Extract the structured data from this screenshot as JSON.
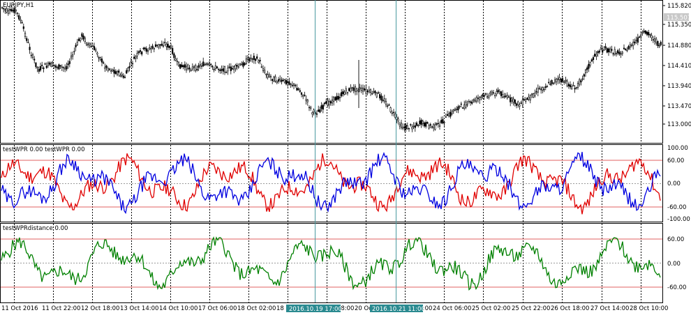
{
  "main": {
    "title": "EURJPY,H1",
    "price_labels": [
      "115.820",
      "115.350",
      "114.880",
      "114.410",
      "113.940",
      "113.470",
      "113.000"
    ],
    "current_price": "115.507",
    "y_range": [
      112.8,
      115.9
    ],
    "current_value": 115.507
  },
  "wpr": {
    "title": "testWPR 0.00 testWPR 0.00",
    "levels": [
      "100.00",
      "60.00",
      "0.00",
      "-60.00",
      "-100.00"
    ],
    "series": [
      {
        "name": "testWPR",
        "color": "#e00000"
      },
      {
        "name": "testWPR",
        "color": "#0000e0"
      }
    ]
  },
  "dist": {
    "title": "testWPRdistance 0.00",
    "levels": [
      "60.00",
      "0.00",
      "-60.00"
    ],
    "series_color": "#008000"
  },
  "time_axis": {
    "labels": [
      "11 Oct 2016",
      "11 Oct 22:00",
      "12 Oct 18:00",
      "13 Oct 14:00",
      "14 Oct 10:00",
      "17 Oct 06:00",
      "18 Oct 02:00",
      "18 Oct 22:00",
      "19 Oct 18:00",
      "20 Oct 14:00",
      "21 Oct 10:00",
      "24 Oct 06:00",
      "25 Oct 02:00",
      "25 Oct 22:00",
      "26 Oct 18:00",
      "27 Oct 14:00",
      "28 Oct 10:00"
    ],
    "crosshair_labels": [
      "2016.10.19 17:00",
      "2016.10.21 11:00"
    ]
  },
  "colors": {
    "grid": "#000000",
    "level_line": "#e06060",
    "crosshair": "#4a9aa0",
    "crosshair_label_bg": "#2a8a90",
    "candles": "#000000"
  }
}
